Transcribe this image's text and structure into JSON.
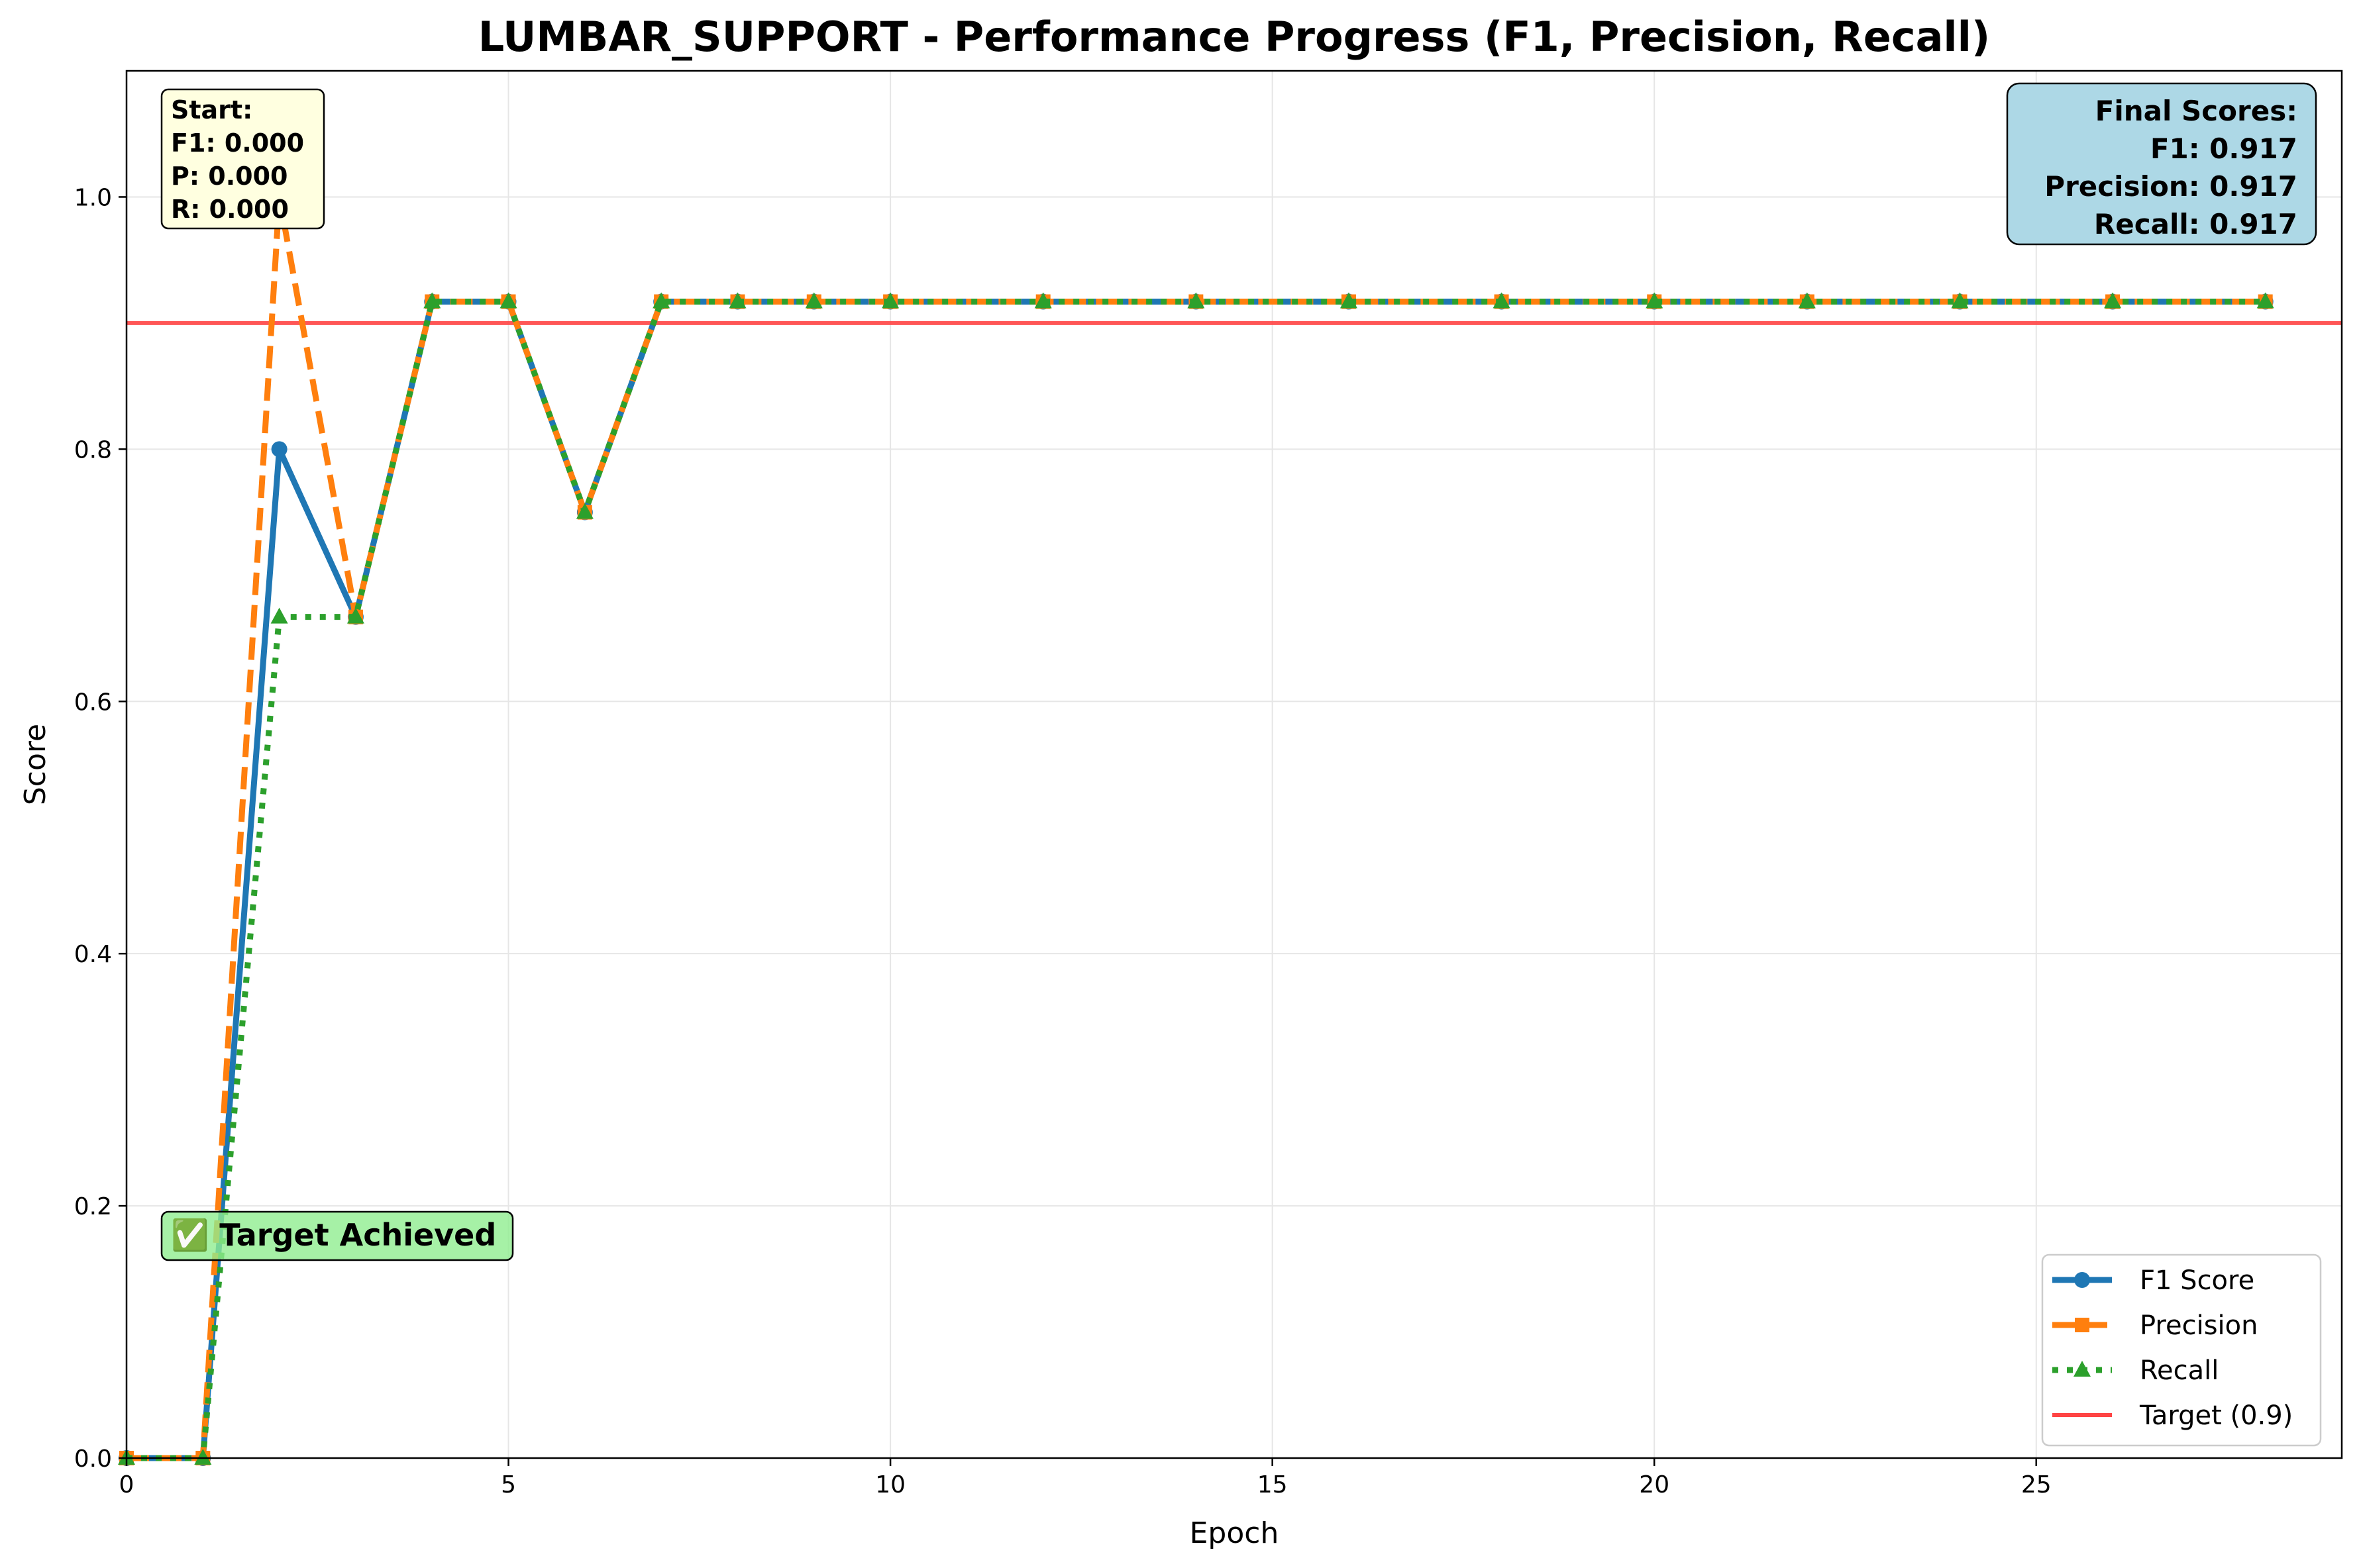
{
  "chart_data": {
    "type": "line",
    "title": "LUMBAR_SUPPORT - Performance Progress (F1, Precision, Recall)",
    "xlabel": "Epoch",
    "ylabel": "Score",
    "xlim": [
      0,
      29
    ],
    "ylim": [
      0.0,
      1.1
    ],
    "xticks": [
      0,
      5,
      10,
      15,
      20,
      25
    ],
    "yticks": [
      0.0,
      0.2,
      0.4,
      0.6,
      0.8,
      1.0
    ],
    "grid": true,
    "legend_position": "lower-right",
    "x": [
      0,
      1,
      2,
      3,
      4,
      5,
      6,
      7,
      8,
      9,
      10,
      12,
      14,
      16,
      18,
      20,
      22,
      24,
      26,
      28
    ],
    "series": [
      {
        "name": "F1 Score",
        "color": "#1f77b4",
        "marker": "circle",
        "style": "solid",
        "values": [
          0.0,
          0.0,
          0.8,
          0.667,
          0.917,
          0.917,
          0.75,
          0.917,
          0.917,
          0.917,
          0.917,
          0.917,
          0.917,
          0.917,
          0.917,
          0.917,
          0.917,
          0.917,
          0.917,
          0.917
        ]
      },
      {
        "name": "Precision",
        "color": "#ff7f0e",
        "marker": "square",
        "style": "dashed",
        "values": [
          0.0,
          0.0,
          1.0,
          0.667,
          0.917,
          0.917,
          0.75,
          0.917,
          0.917,
          0.917,
          0.917,
          0.917,
          0.917,
          0.917,
          0.917,
          0.917,
          0.917,
          0.917,
          0.917,
          0.917
        ]
      },
      {
        "name": "Recall",
        "color": "#2ca02c",
        "marker": "triangle",
        "style": "dotted",
        "values": [
          0.0,
          0.0,
          0.667,
          0.667,
          0.917,
          0.917,
          0.75,
          0.917,
          0.917,
          0.917,
          0.917,
          0.917,
          0.917,
          0.917,
          0.917,
          0.917,
          0.917,
          0.917,
          0.917,
          0.917
        ]
      }
    ],
    "target": {
      "name": "Target (0.9)",
      "value": 0.9,
      "color": "#ff4444"
    },
    "annotations": {
      "start": [
        "Start:",
        "F1: 0.000",
        "P: 0.000",
        "R: 0.000"
      ],
      "final": [
        "Final Scores:",
        "F1: 0.917",
        "Precision: 0.917",
        "Recall: 0.917"
      ],
      "achieved": "✅ Target Achieved"
    }
  }
}
